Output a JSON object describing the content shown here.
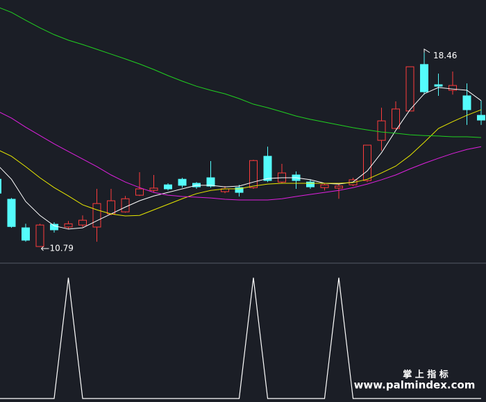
{
  "chart_data": [
    {
      "type": "candlestick",
      "ylim": [
        10.16,
        20.54
      ],
      "up_color": "#ff3c3c",
      "down_color": "#54fcfc",
      "open": [
        13.45,
        12.66,
        11.53,
        10.79,
        11.67,
        11.56,
        11.64,
        11.56,
        12.08,
        12.16,
        12.82,
        13.01,
        13.23,
        13.45,
        13.29,
        13.51,
        12.96,
        13.12,
        13.12,
        14.36,
        13.34,
        13.62,
        13.34,
        13.12,
        13.1,
        13.23,
        13.4,
        14.99,
        15.46,
        16.15,
        17.99,
        17.19,
        16.97,
        16.75,
        15.98
      ],
      "high": [
        13.54,
        12.71,
        11.69,
        11.69,
        11.75,
        11.8,
        12.02,
        13.07,
        13.07,
        12.79,
        13.73,
        13.62,
        13.29,
        13.51,
        13.34,
        14.17,
        13.18,
        13.23,
        14.22,
        14.74,
        14.06,
        13.76,
        13.45,
        13.29,
        13.26,
        13.51,
        14.8,
        16.28,
        16.53,
        17.9,
        18.46,
        17.63,
        17.71,
        17.24,
        16.56
      ],
      "low": [
        12.85,
        11.53,
        10.98,
        10.79,
        11.34,
        11.47,
        11.56,
        10.98,
        12.02,
        12.13,
        12.79,
        12.93,
        13.01,
        13.12,
        13.07,
        13.12,
        12.9,
        12.77,
        13.07,
        13.34,
        13.29,
        13.07,
        13.07,
        13.01,
        12.68,
        13.18,
        13.34,
        14.58,
        15.43,
        16.15,
        16.8,
        16.75,
        16.8,
        15.6,
        15.6
      ],
      "close": [
        12.9,
        11.58,
        11.04,
        11.64,
        11.45,
        11.69,
        11.83,
        12.49,
        12.6,
        12.68,
        13.07,
        13.1,
        13.07,
        13.21,
        13.15,
        13.18,
        13.07,
        12.93,
        14.19,
        13.4,
        13.7,
        13.4,
        13.15,
        13.23,
        13.18,
        13.43,
        14.8,
        15.76,
        16.23,
        17.9,
        16.91,
        17.13,
        17.16,
        16.2,
        15.79
      ],
      "lines": [
        {
          "color": "#ffffff",
          "values": [
            14.03,
            13.45,
            12.57,
            12.02,
            11.61,
            11.48,
            11.53,
            11.81,
            12.08,
            12.35,
            12.6,
            12.79,
            12.93,
            13.07,
            13.21,
            13.21,
            13.15,
            13.18,
            13.34,
            13.48,
            13.51,
            13.51,
            13.43,
            13.29,
            13.26,
            13.34,
            13.78,
            14.5,
            15.38,
            16.2,
            16.83,
            17.08,
            17.02,
            16.97,
            16.56
          ]
        },
        {
          "color": "#e8e800",
          "values": [
            14.63,
            14.36,
            13.95,
            13.51,
            13.12,
            12.79,
            12.44,
            12.24,
            12.08,
            12.0,
            12.02,
            12.24,
            12.46,
            12.68,
            12.88,
            13.01,
            13.07,
            13.07,
            13.18,
            13.26,
            13.29,
            13.29,
            13.29,
            13.29,
            13.29,
            13.32,
            13.45,
            13.7,
            13.97,
            14.39,
            14.91,
            15.46,
            15.73,
            15.98,
            16.2
          ]
        },
        {
          "color": "#e020e0",
          "values": [
            16.15,
            15.87,
            15.51,
            15.18,
            14.85,
            14.55,
            14.25,
            13.95,
            13.62,
            13.34,
            13.12,
            12.93,
            12.82,
            12.77,
            12.74,
            12.71,
            12.66,
            12.63,
            12.63,
            12.63,
            12.68,
            12.77,
            12.85,
            12.93,
            13.01,
            13.12,
            13.26,
            13.43,
            13.62,
            13.86,
            14.08,
            14.28,
            14.47,
            14.63,
            14.74
          ]
        },
        {
          "color": "#20d020",
          "values": [
            20.27,
            20.05,
            19.74,
            19.44,
            19.17,
            18.95,
            18.78,
            18.59,
            18.4,
            18.21,
            18.01,
            17.79,
            17.55,
            17.33,
            17.13,
            16.97,
            16.83,
            16.64,
            16.42,
            16.28,
            16.12,
            15.95,
            15.82,
            15.71,
            15.6,
            15.49,
            15.4,
            15.32,
            15.27,
            15.21,
            15.18,
            15.16,
            15.13,
            15.13,
            15.1
          ]
        }
      ]
    },
    {
      "type": "line",
      "ylim": [
        0,
        1
      ],
      "color": "#ffffff",
      "values": [
        0,
        0,
        0,
        0,
        0,
        1,
        0,
        0,
        0,
        0,
        0,
        0,
        0,
        0,
        0,
        0,
        0,
        0,
        1,
        0,
        0,
        0,
        0,
        0,
        1,
        0,
        0,
        0,
        0,
        0,
        0,
        0,
        0,
        0,
        0
      ]
    }
  ],
  "watermark": {
    "title": "掌 上 指 标",
    "url": "www.palmindex.com"
  }
}
